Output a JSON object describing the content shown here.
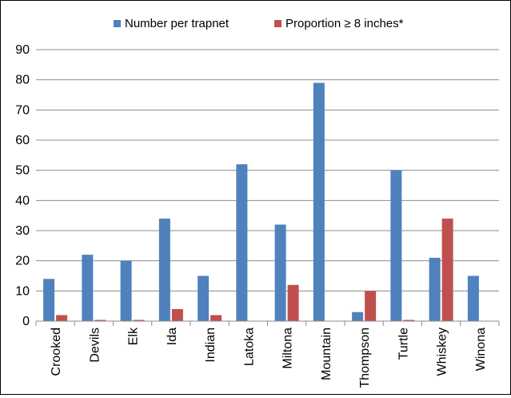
{
  "chart_data": {
    "type": "bar",
    "categories": [
      "Crooked",
      "Devils",
      "Elk",
      "Ida",
      "Indian",
      "Latoka",
      "Miltona",
      "Mountain",
      "Thompson",
      "Turtle",
      "Whiskey",
      "Winona"
    ],
    "series": [
      {
        "name": "Number per trapnet",
        "color": "#4f81bd",
        "values": [
          14,
          22,
          20,
          34,
          15,
          52,
          32,
          79,
          3,
          50,
          21,
          15
        ]
      },
      {
        "name": "Proportion ≥ 8 inches*",
        "color": "#c0504d",
        "values": [
          2,
          0.4,
          0.4,
          4,
          2,
          0,
          12,
          0,
          10,
          0.4,
          34,
          0
        ]
      }
    ],
    "ylim": [
      0,
      90
    ],
    "yticks": [
      0,
      10,
      20,
      30,
      40,
      50,
      60,
      70,
      80,
      90
    ],
    "grid": true,
    "legend_position": "top"
  }
}
